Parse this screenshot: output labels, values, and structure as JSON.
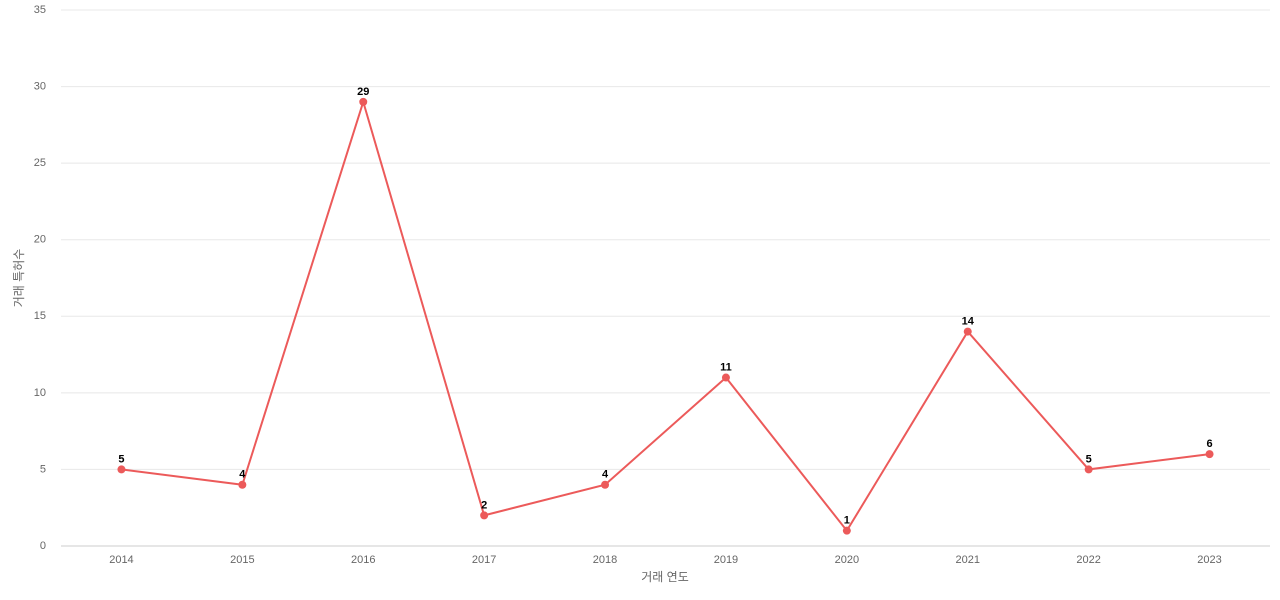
{
  "chart_data": {
    "type": "line",
    "x_label": "거래 연도",
    "y_label": "거래 특허수",
    "categories": [
      "2014",
      "2015",
      "2016",
      "2017",
      "2018",
      "2019",
      "2020",
      "2021",
      "2022",
      "2023"
    ],
    "series": [
      {
        "name": "거래 특허수",
        "color": "#ec5a5a",
        "values": [
          5,
          4,
          29,
          2,
          4,
          11,
          1,
          14,
          5,
          6
        ]
      }
    ],
    "ylim": [
      0,
      35
    ],
    "yticks": [
      0,
      5,
      10,
      15,
      20,
      25,
      30,
      35
    ],
    "grid": true
  }
}
